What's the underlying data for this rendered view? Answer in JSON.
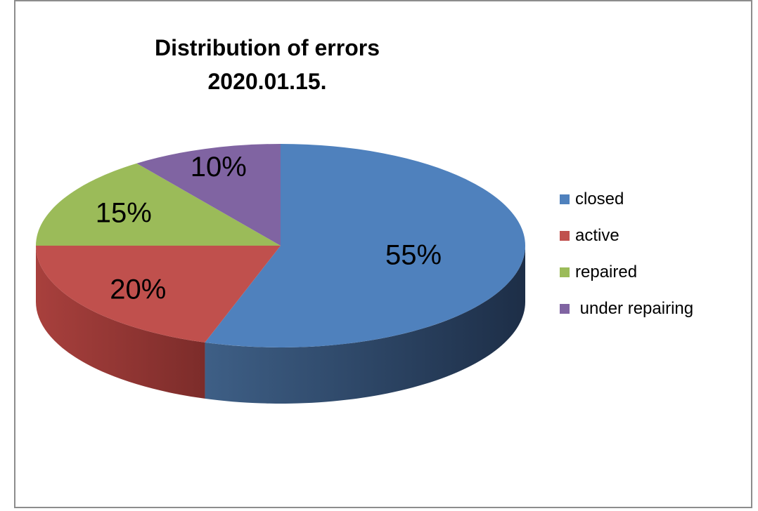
{
  "chart_data": {
    "type": "pie",
    "title": "Distribution of errors",
    "subtitle": "2020.01.15.",
    "categories": [
      "closed",
      "active",
      "repaired",
      " under repairing"
    ],
    "values": [
      55,
      20,
      15,
      10
    ],
    "data_labels": [
      "55%",
      "20%",
      "15%",
      "10%"
    ],
    "colors": [
      "#4F81BD",
      "#C0504D",
      "#9BBB59",
      "#8064A2"
    ],
    "legend_position": "right",
    "style": "3d"
  }
}
